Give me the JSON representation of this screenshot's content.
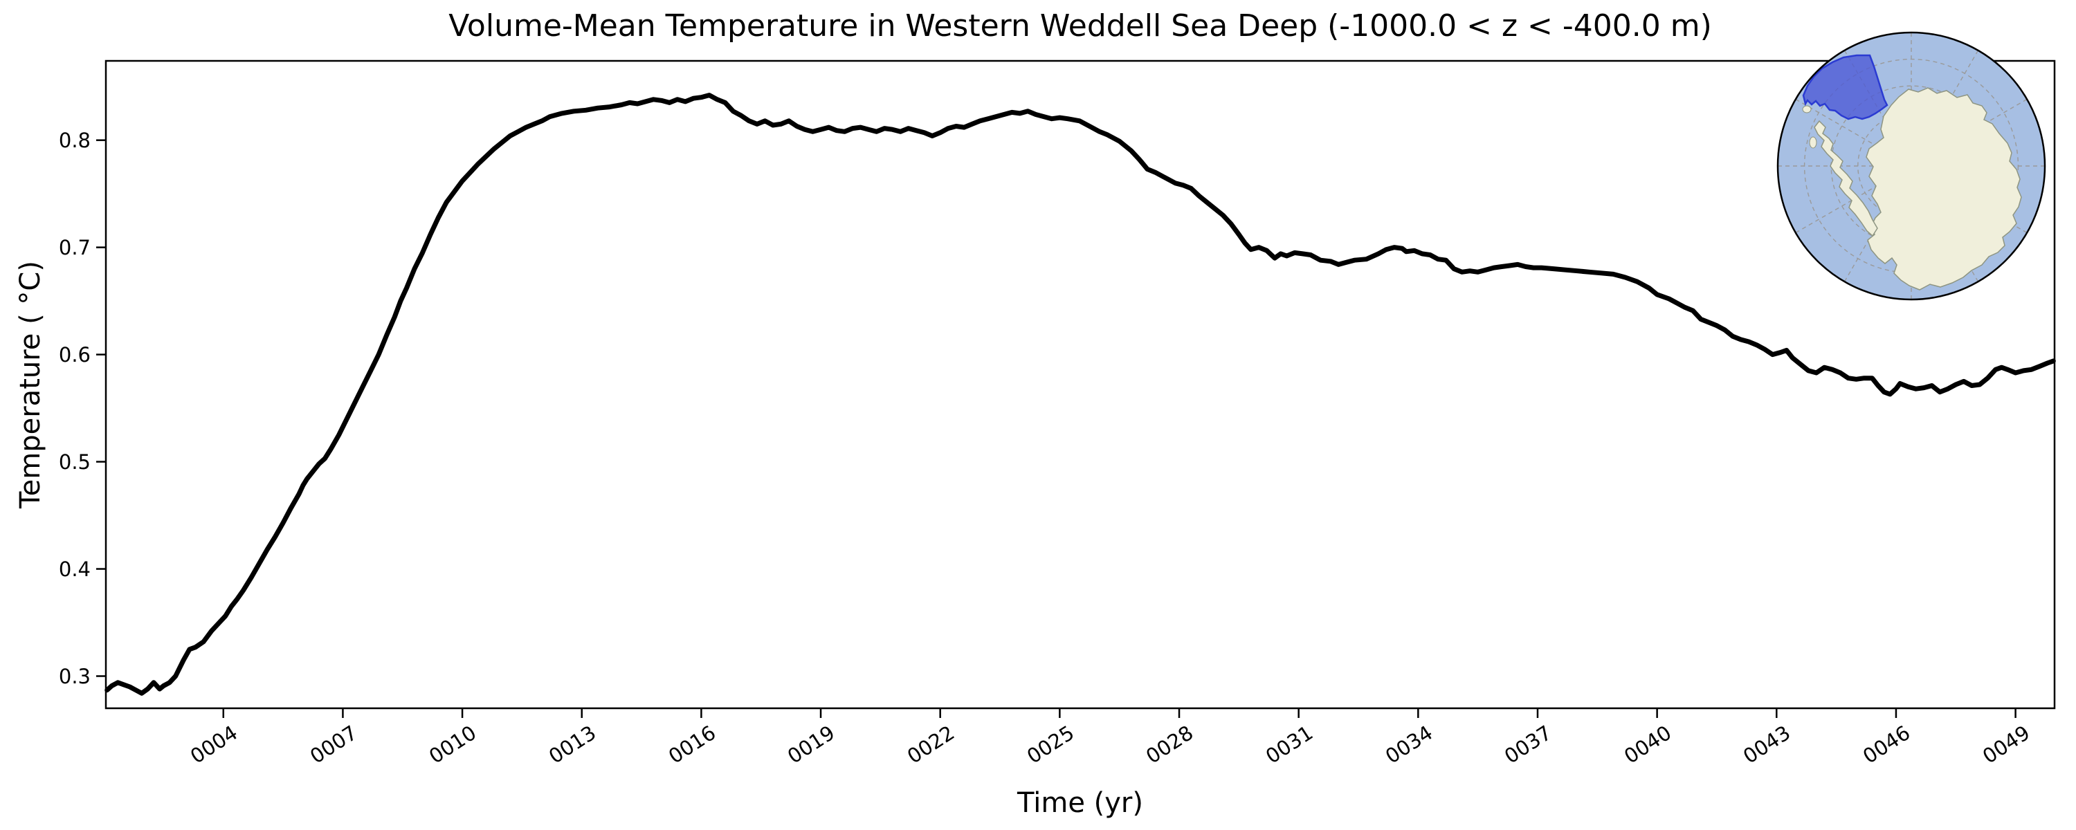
{
  "figure": {
    "title": "Volume-Mean Temperature in Western Weddell Sea Deep (-1000.0 < z < -400.0 m)",
    "xlabel": "Time (yr)",
    "ylabel": "Temperature ( °C)"
  },
  "chart_data": {
    "type": "line",
    "title": "Volume-Mean Temperature in Western Weddell Sea Deep (-1000.0 < z < -400.0 m)",
    "xlabel": "Time (yr)",
    "ylabel": "Temperature (°C)",
    "xlim": [
      1.05,
      49.98
    ],
    "ylim": [
      0.27,
      0.874
    ],
    "grid": false,
    "legend_position": "none",
    "line_color": "#000000",
    "line_width": 7,
    "xticks": [
      {
        "label": "0004",
        "value": 4
      },
      {
        "label": "0007",
        "value": 7
      },
      {
        "label": "0010",
        "value": 10
      },
      {
        "label": "0013",
        "value": 13
      },
      {
        "label": "0016",
        "value": 16
      },
      {
        "label": "0019",
        "value": 19
      },
      {
        "label": "0022",
        "value": 22
      },
      {
        "label": "0025",
        "value": 25
      },
      {
        "label": "0028",
        "value": 28
      },
      {
        "label": "0031",
        "value": 31
      },
      {
        "label": "0034",
        "value": 34
      },
      {
        "label": "0037",
        "value": 37
      },
      {
        "label": "0040",
        "value": 40
      },
      {
        "label": "0043",
        "value": 43
      },
      {
        "label": "0046",
        "value": 46
      },
      {
        "label": "0049",
        "value": 49
      }
    ],
    "yticks": [
      {
        "label": "0.3",
        "value": 0.3
      },
      {
        "label": "0.4",
        "value": 0.4
      },
      {
        "label": "0.5",
        "value": 0.5
      },
      {
        "label": "0.6",
        "value": 0.6
      },
      {
        "label": "0.7",
        "value": 0.7
      },
      {
        "label": "0.8",
        "value": 0.8
      }
    ],
    "series": [
      {
        "name": "volume-mean-temperature",
        "x": [
          1.08,
          1.2,
          1.35,
          1.5,
          1.65,
          1.8,
          1.95,
          2.1,
          2.25,
          2.4,
          2.5,
          2.65,
          2.8,
          3.0,
          3.15,
          3.3,
          3.5,
          3.7,
          3.9,
          4.05,
          4.2,
          4.35,
          4.5,
          4.7,
          4.9,
          5.1,
          5.3,
          5.5,
          5.7,
          5.9,
          6.0,
          6.1,
          6.25,
          6.4,
          6.55,
          6.7,
          6.9,
          7.1,
          7.3,
          7.5,
          7.7,
          7.9,
          8.1,
          8.3,
          8.45,
          8.6,
          8.8,
          9.0,
          9.2,
          9.4,
          9.6,
          9.8,
          10.0,
          10.2,
          10.4,
          10.6,
          10.8,
          11.0,
          11.2,
          11.4,
          11.6,
          11.8,
          12.0,
          12.2,
          12.5,
          12.8,
          13.1,
          13.4,
          13.7,
          14.0,
          14.2,
          14.4,
          14.6,
          14.8,
          15.0,
          15.2,
          15.4,
          15.6,
          15.8,
          16.0,
          16.2,
          16.4,
          16.6,
          16.8,
          17.0,
          17.2,
          17.4,
          17.6,
          17.8,
          18.0,
          18.2,
          18.4,
          18.6,
          18.8,
          19.0,
          19.2,
          19.4,
          19.6,
          19.8,
          20.0,
          20.2,
          20.4,
          20.6,
          20.8,
          21.0,
          21.2,
          21.4,
          21.6,
          21.8,
          22.0,
          22.2,
          22.4,
          22.6,
          22.8,
          23.0,
          23.2,
          23.4,
          23.6,
          23.8,
          24.0,
          24.2,
          24.4,
          24.6,
          24.8,
          25.0,
          25.2,
          25.5,
          25.8,
          26.0,
          26.2,
          26.5,
          26.8,
          27.0,
          27.2,
          27.4,
          27.6,
          27.9,
          28.1,
          28.3,
          28.5,
          28.7,
          28.9,
          29.1,
          29.3,
          29.5,
          29.65,
          29.8,
          30.0,
          30.2,
          30.4,
          30.55,
          30.7,
          30.9,
          31.1,
          31.3,
          31.55,
          31.8,
          32.0,
          32.2,
          32.4,
          32.7,
          33.0,
          33.2,
          33.4,
          33.6,
          33.7,
          33.9,
          34.1,
          34.3,
          34.5,
          34.7,
          34.9,
          35.1,
          35.3,
          35.5,
          35.7,
          35.9,
          36.1,
          36.3,
          36.5,
          36.7,
          36.9,
          37.1,
          37.4,
          37.7,
          38.0,
          38.3,
          38.6,
          38.9,
          39.2,
          39.5,
          39.8,
          40.0,
          40.3,
          40.5,
          40.7,
          40.9,
          41.1,
          41.3,
          41.5,
          41.7,
          41.9,
          42.1,
          42.3,
          42.5,
          42.7,
          42.9,
          43.1,
          43.25,
          43.4,
          43.6,
          43.8,
          44.0,
          44.2,
          44.4,
          44.6,
          44.8,
          45.0,
          45.2,
          45.4,
          45.55,
          45.7,
          45.85,
          46.0,
          46.1,
          46.3,
          46.5,
          46.7,
          46.9,
          47.1,
          47.3,
          47.5,
          47.7,
          47.9,
          48.1,
          48.3,
          48.5,
          48.65,
          48.8,
          49.0,
          49.2,
          49.4,
          49.6,
          49.8,
          49.95
        ],
        "y": [
          0.287,
          0.291,
          0.294,
          0.292,
          0.29,
          0.287,
          0.284,
          0.288,
          0.294,
          0.288,
          0.291,
          0.294,
          0.3,
          0.315,
          0.325,
          0.327,
          0.332,
          0.342,
          0.35,
          0.356,
          0.365,
          0.372,
          0.38,
          0.392,
          0.405,
          0.418,
          0.43,
          0.443,
          0.457,
          0.47,
          0.478,
          0.484,
          0.491,
          0.498,
          0.503,
          0.512,
          0.525,
          0.54,
          0.555,
          0.57,
          0.585,
          0.6,
          0.618,
          0.635,
          0.65,
          0.662,
          0.68,
          0.695,
          0.712,
          0.728,
          0.742,
          0.752,
          0.762,
          0.77,
          0.778,
          0.785,
          0.792,
          0.798,
          0.804,
          0.808,
          0.812,
          0.815,
          0.818,
          0.822,
          0.825,
          0.827,
          0.828,
          0.83,
          0.831,
          0.833,
          0.835,
          0.834,
          0.836,
          0.838,
          0.837,
          0.835,
          0.838,
          0.836,
          0.839,
          0.84,
          0.842,
          0.838,
          0.835,
          0.827,
          0.823,
          0.818,
          0.815,
          0.818,
          0.814,
          0.815,
          0.818,
          0.813,
          0.81,
          0.808,
          0.81,
          0.812,
          0.809,
          0.808,
          0.811,
          0.812,
          0.81,
          0.808,
          0.811,
          0.81,
          0.808,
          0.811,
          0.809,
          0.807,
          0.804,
          0.807,
          0.811,
          0.813,
          0.812,
          0.815,
          0.818,
          0.82,
          0.822,
          0.824,
          0.826,
          0.825,
          0.827,
          0.824,
          0.822,
          0.82,
          0.821,
          0.82,
          0.818,
          0.812,
          0.808,
          0.805,
          0.799,
          0.79,
          0.782,
          0.773,
          0.77,
          0.766,
          0.76,
          0.758,
          0.755,
          0.748,
          0.742,
          0.736,
          0.73,
          0.722,
          0.712,
          0.704,
          0.698,
          0.7,
          0.697,
          0.69,
          0.694,
          0.692,
          0.695,
          0.694,
          0.693,
          0.688,
          0.687,
          0.684,
          0.686,
          0.688,
          0.689,
          0.694,
          0.698,
          0.7,
          0.699,
          0.696,
          0.697,
          0.694,
          0.693,
          0.689,
          0.688,
          0.68,
          0.677,
          0.678,
          0.677,
          0.679,
          0.681,
          0.682,
          0.683,
          0.684,
          0.682,
          0.681,
          0.681,
          0.68,
          0.679,
          0.678,
          0.677,
          0.676,
          0.675,
          0.672,
          0.668,
          0.662,
          0.656,
          0.652,
          0.648,
          0.644,
          0.641,
          0.633,
          0.63,
          0.627,
          0.623,
          0.617,
          0.614,
          0.612,
          0.609,
          0.605,
          0.6,
          0.602,
          0.604,
          0.597,
          0.591,
          0.585,
          0.583,
          0.588,
          0.586,
          0.583,
          0.578,
          0.577,
          0.578,
          0.578,
          0.571,
          0.565,
          0.563,
          0.568,
          0.573,
          0.57,
          0.568,
          0.569,
          0.571,
          0.565,
          0.568,
          0.572,
          0.575,
          0.571,
          0.572,
          0.578,
          0.586,
          0.588,
          0.586,
          0.583,
          0.585,
          0.586,
          0.589,
          0.592,
          0.594
        ]
      }
    ],
    "inset_map": {
      "description": "South polar stereographic inset map of Antarctica with the Western Weddell Sea region highlighted",
      "highlight_region": "western-weddell-sea-region",
      "ocean_color": "#a7bfe3",
      "land_color": "#f0efdb",
      "coast_color": "#8e9582",
      "graticule_color": "#9a9a9a",
      "highlight_fill": "#4b59d6",
      "highlight_edge": "#2b3bd2",
      "highlight_opacity": "0.78",
      "boundary_color": "#000000"
    }
  }
}
